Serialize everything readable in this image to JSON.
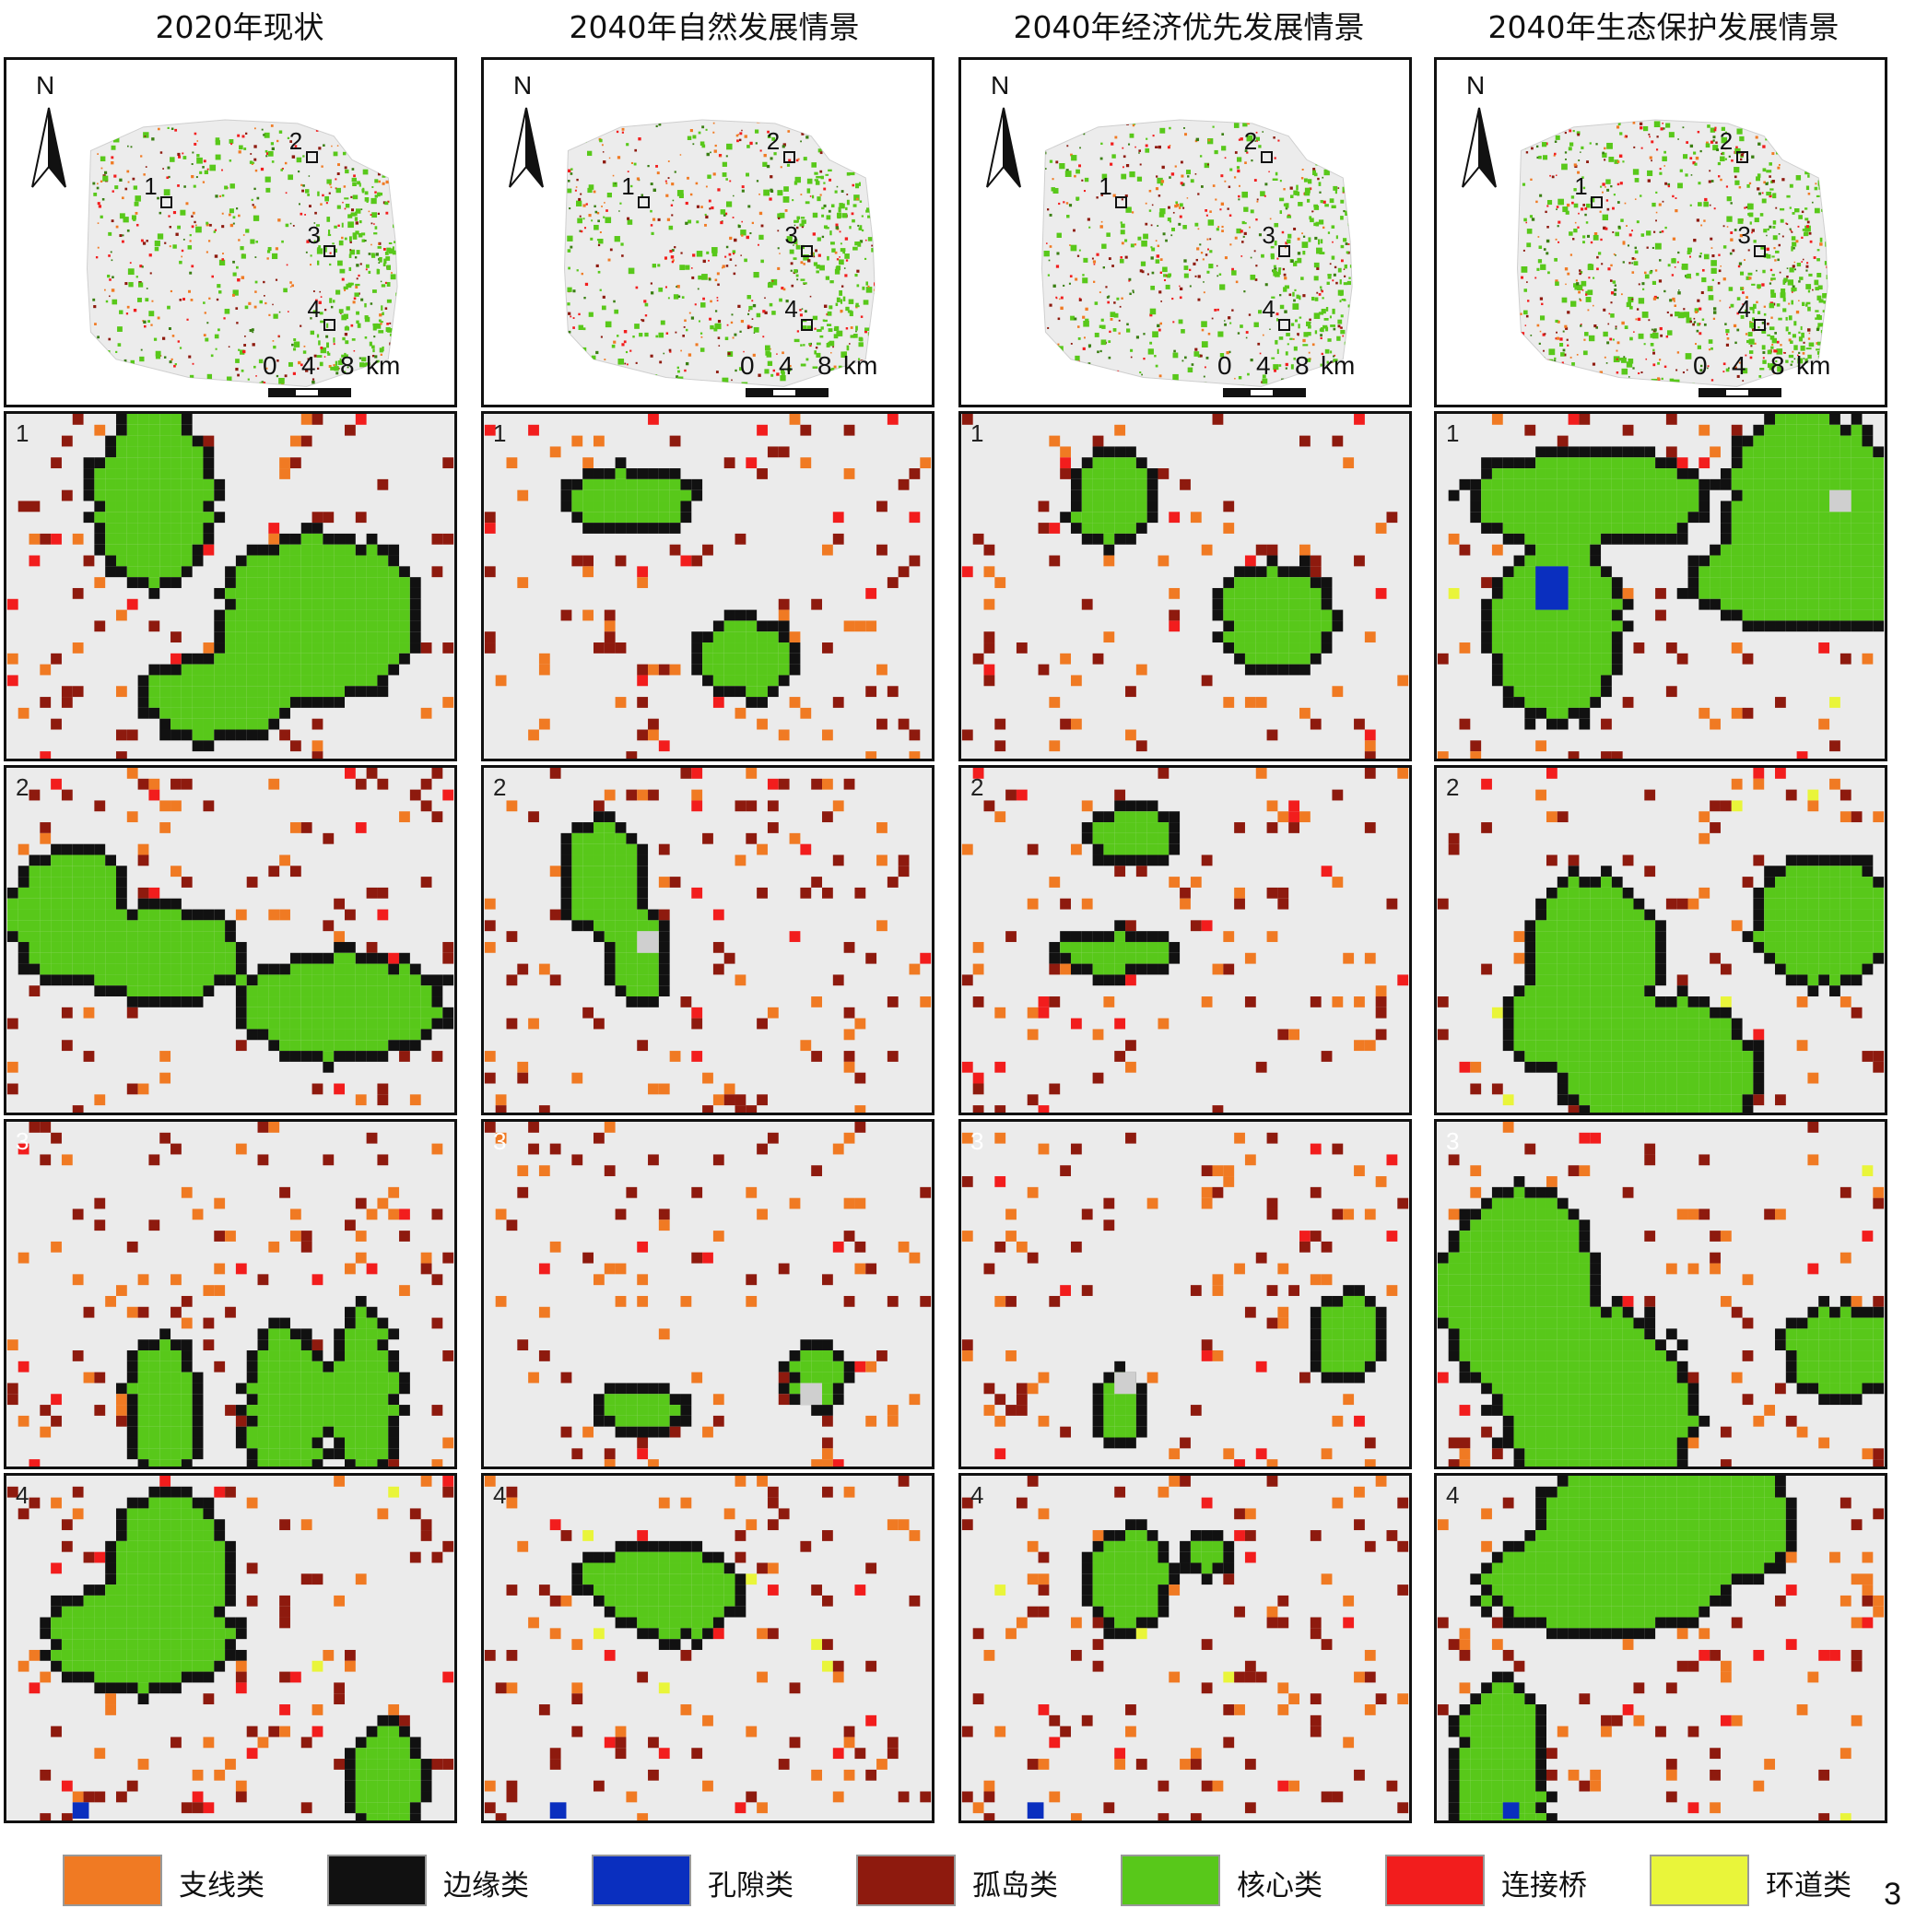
{
  "columns": [
    {
      "title": "2020年现状"
    },
    {
      "title": "2040年自然发展情景"
    },
    {
      "title": "2040年经济优先发展情景"
    },
    {
      "title": "2040年生态保护发展情景"
    }
  ],
  "overview": {
    "north_label": "N",
    "scale": {
      "ticks": [
        "0",
        "4",
        "8"
      ],
      "unit": "km"
    },
    "sites": [
      "1",
      "2",
      "3",
      "4"
    ]
  },
  "detail_rows": [
    {
      "label": "1"
    },
    {
      "label": "2"
    },
    {
      "label": "3"
    },
    {
      "label": "4"
    }
  ],
  "legend": [
    {
      "label": "支线类",
      "color": "#f07a23"
    },
    {
      "label": "边缘类",
      "color": "#111111"
    },
    {
      "label": "孔隙类",
      "color": "#0a2fbf"
    },
    {
      "label": "孤岛类",
      "color": "#8e1a0e"
    },
    {
      "label": "核心类",
      "color": "#58c81a"
    },
    {
      "label": "连接桥",
      "color": "#f21d1d"
    },
    {
      "label": "环道类",
      "color": "#e9f53a"
    }
  ],
  "page_number": "3"
}
